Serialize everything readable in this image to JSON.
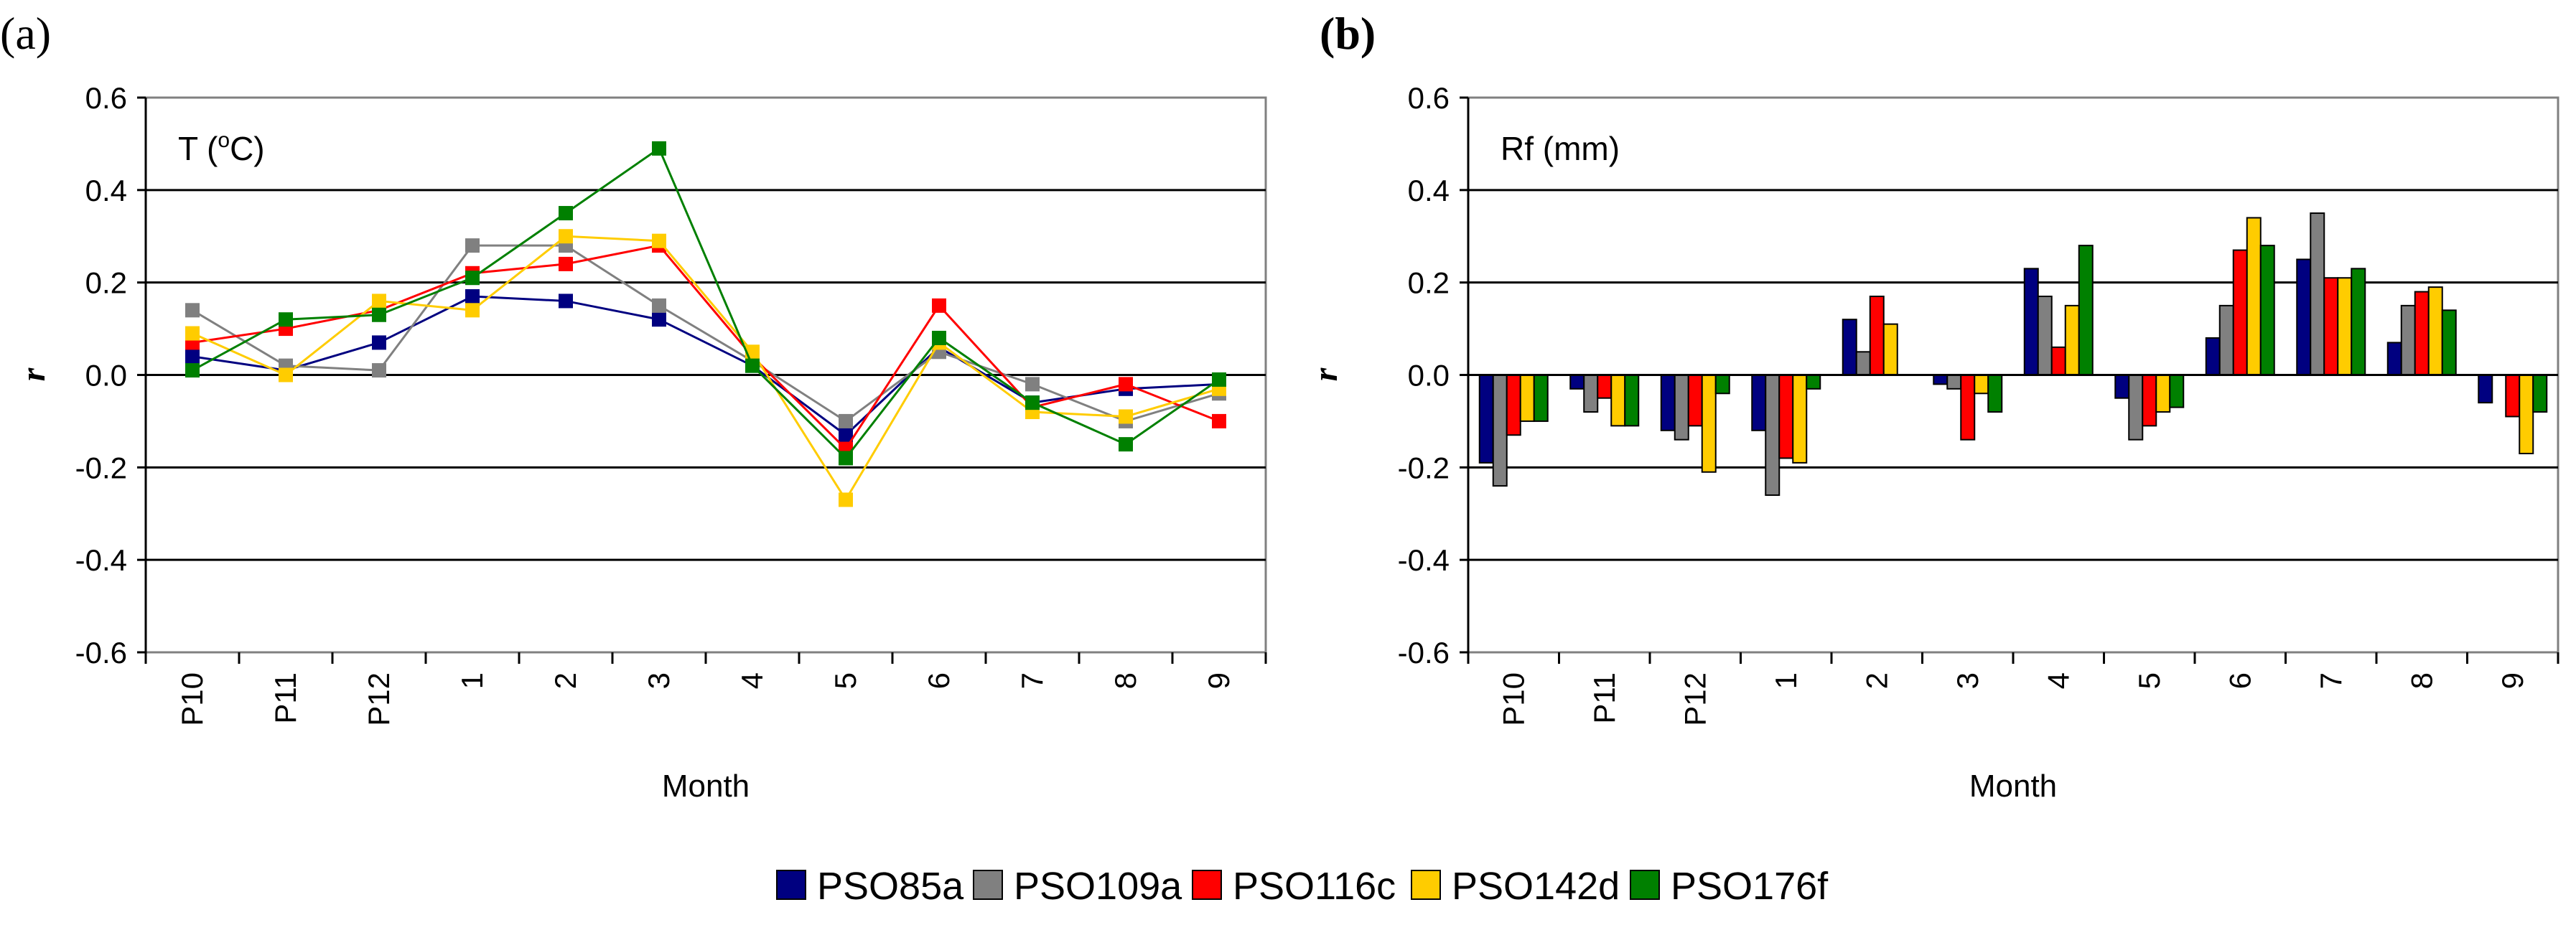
{
  "panel_labels": {
    "a": "(a)",
    "b": "(b)"
  },
  "colors": {
    "PSO85a": "#000080",
    "PSO109a": "#808080",
    "PSO116c": "#ff0000",
    "PSO142d": "#ffcc00",
    "PSO176f": "#008000"
  },
  "legend": {
    "placement": "bottom-center",
    "items": [
      "PSO85a",
      "PSO109a",
      "PSO116c",
      "PSO142d",
      "PSO176f"
    ]
  },
  "chart_data": [
    {
      "type": "line",
      "panel": "(a)",
      "annotation_prefix": "T (",
      "annotation_sup": "o",
      "annotation_suffix": "C)",
      "xlabel": "Month",
      "ylabel": "r",
      "ylim": [
        -0.6,
        0.6
      ],
      "yticks": [
        "0.6",
        "0.4",
        "0.2",
        "0.0",
        "-0.2",
        "-0.4",
        "-0.6"
      ],
      "grid": true,
      "categories": [
        "P10",
        "P11",
        "P12",
        "1",
        "2",
        "3",
        "4",
        "5",
        "6",
        "7",
        "8",
        "9"
      ],
      "series": [
        {
          "name": "PSO85a",
          "values": [
            0.04,
            0.01,
            0.07,
            0.17,
            0.16,
            0.12,
            0.02,
            -0.13,
            0.06,
            -0.06,
            -0.03,
            -0.02
          ]
        },
        {
          "name": "PSO109a",
          "values": [
            0.14,
            0.02,
            0.01,
            0.28,
            0.28,
            0.15,
            0.03,
            -0.1,
            0.05,
            -0.02,
            -0.1,
            -0.04
          ]
        },
        {
          "name": "PSO116c",
          "values": [
            0.07,
            0.1,
            0.14,
            0.22,
            0.24,
            0.28,
            0.04,
            -0.16,
            0.15,
            -0.07,
            -0.02,
            -0.1
          ]
        },
        {
          "name": "PSO142d",
          "values": [
            0.09,
            0.0,
            0.16,
            0.14,
            0.3,
            0.29,
            0.05,
            -0.27,
            0.07,
            -0.08,
            -0.09,
            -0.03
          ]
        },
        {
          "name": "PSO176f",
          "values": [
            0.01,
            0.12,
            0.13,
            0.21,
            0.35,
            0.49,
            0.02,
            -0.18,
            0.08,
            -0.06,
            -0.15,
            -0.01
          ]
        }
      ]
    },
    {
      "type": "bar",
      "panel": "(b)",
      "annotation": "Rf (mm)",
      "xlabel": "Month",
      "ylabel": "r",
      "ylim": [
        -0.6,
        0.6
      ],
      "yticks": [
        "0.6",
        "0.4",
        "0.2",
        "0.0",
        "-0.2",
        "-0.4",
        "-0.6"
      ],
      "grid": true,
      "categories": [
        "P10",
        "P11",
        "P12",
        "1",
        "2",
        "3",
        "4",
        "5",
        "6",
        "7",
        "8",
        "9"
      ],
      "series": [
        {
          "name": "PSO85a",
          "values": [
            -0.19,
            -0.03,
            -0.12,
            -0.12,
            0.12,
            -0.02,
            0.23,
            -0.05,
            0.08,
            0.25,
            0.07,
            -0.06
          ]
        },
        {
          "name": "PSO109a",
          "values": [
            -0.24,
            -0.08,
            -0.14,
            -0.26,
            0.05,
            -0.03,
            0.17,
            -0.14,
            0.15,
            0.35,
            0.15,
            0.0
          ]
        },
        {
          "name": "PSO116c",
          "values": [
            -0.13,
            -0.05,
            -0.11,
            -0.18,
            0.17,
            -0.14,
            0.06,
            -0.11,
            0.27,
            0.21,
            0.18,
            -0.09
          ]
        },
        {
          "name": "PSO142d",
          "values": [
            -0.1,
            -0.11,
            -0.21,
            -0.19,
            0.11,
            -0.04,
            0.15,
            -0.08,
            0.34,
            0.21,
            0.19,
            -0.17
          ]
        },
        {
          "name": "PSO176f",
          "values": [
            -0.1,
            -0.11,
            -0.04,
            -0.03,
            0.0,
            -0.08,
            0.28,
            -0.07,
            0.28,
            0.23,
            0.14,
            -0.08
          ]
        }
      ]
    }
  ]
}
